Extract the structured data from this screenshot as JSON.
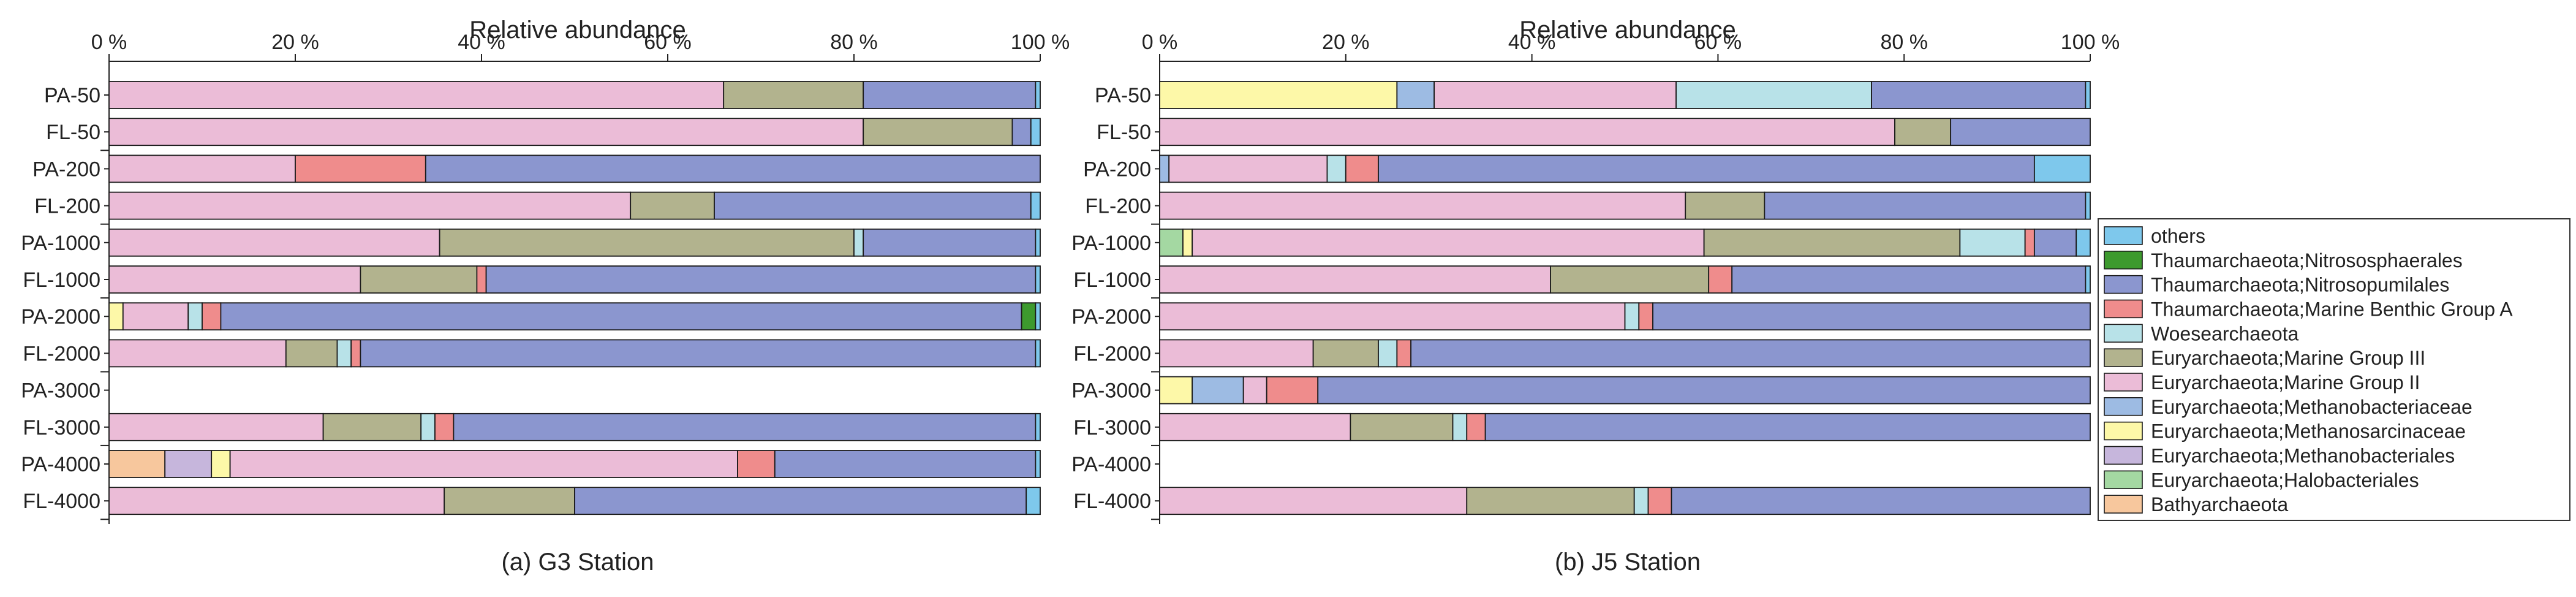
{
  "colors": {
    "others": "#7ec8ec",
    "Thaumarchaeota;Nitrososphaerales": "#3d9a2e",
    "Thaumarchaeota;Nitrosopumilales": "#8b96cf",
    "Thaumarchaeota;Marine Benthic Group A": "#ef8c8c",
    "Woesearchaeota": "#b8e2e8",
    "Euryarchaeota;Marine Group III": "#b2b38e",
    "Euryarchaeota;Marine Group II": "#ebbcd7",
    "Euryarchaeota;Methanobacteriaceae": "#9dbbe3",
    "Euryarchaeota;Methanosarcinaceae": "#fdf8a8",
    "Euryarchaeota;Methanobacteriales": "#c6b6dc",
    "Euryarchaeota;Halobacteriales": "#a4d8a2",
    "Bathyarchaeota": "#f7c79d"
  },
  "legend": {
    "items": [
      "others",
      "Thaumarchaeota;Nitrososphaerales",
      "Thaumarchaeota;Nitrosopumilales",
      "Thaumarchaeota;Marine Benthic Group A",
      "Woesearchaeota",
      "Euryarchaeota;Marine Group III",
      "Euryarchaeota;Marine Group II",
      "Euryarchaeota;Methanobacteriaceae",
      "Euryarchaeota;Methanosarcinaceae",
      "Euryarchaeota;Methanobacteriales",
      "Euryarchaeota;Halobacteriales",
      "Bathyarchaeota"
    ]
  },
  "chart_data": [
    {
      "type": "bar",
      "orientation": "horizontal",
      "stacked": true,
      "title": "(a) G3 Station",
      "xlabel": "Relative abundance",
      "xticks": [
        "0 %",
        "20 %",
        "40 %",
        "60 %",
        "80 %",
        "100 %"
      ],
      "xlim": [
        0,
        100
      ],
      "categories": [
        "PA-50",
        "FL-50",
        "PA-200",
        "FL-200",
        "PA-1000",
        "FL-1000",
        "PA-2000",
        "FL-2000",
        "PA-3000",
        "FL-3000",
        "PA-4000",
        "FL-4000"
      ],
      "series": [
        {
          "name": "Bathyarchaeota",
          "values": [
            0,
            0,
            0,
            0,
            0,
            0,
            0,
            0,
            0,
            0,
            6.0,
            0
          ]
        },
        {
          "name": "Euryarchaeota;Halobacteriales",
          "values": [
            0,
            0,
            0,
            0,
            0,
            0,
            0,
            0,
            0,
            0,
            0,
            0
          ]
        },
        {
          "name": "Euryarchaeota;Methanobacteriales",
          "values": [
            0,
            0,
            0,
            0,
            0,
            0,
            0,
            0,
            0,
            0,
            5.0,
            0
          ]
        },
        {
          "name": "Euryarchaeota;Methanosarcinaceae",
          "values": [
            0,
            0,
            0,
            0,
            0,
            0,
            1.5,
            0,
            0,
            0,
            2.0,
            0
          ]
        },
        {
          "name": "Euryarchaeota;Methanobacteriaceae",
          "values": [
            0,
            0,
            0,
            0,
            0,
            0,
            0,
            0,
            0,
            0,
            0,
            0
          ]
        },
        {
          "name": "Euryarchaeota;Marine Group II",
          "values": [
            66.0,
            81.0,
            20.0,
            56.0,
            35.5,
            27.0,
            7.0,
            19.0,
            0,
            23.0,
            54.5,
            36.0
          ]
        },
        {
          "name": "Euryarchaeota;Marine Group III",
          "values": [
            15.0,
            16.0,
            0,
            9.0,
            44.5,
            12.5,
            0,
            5.5,
            0,
            10.5,
            0,
            14.0
          ]
        },
        {
          "name": "Woesearchaeota",
          "values": [
            0,
            0,
            0,
            0,
            1.0,
            0,
            1.5,
            1.5,
            0,
            1.5,
            0,
            0
          ]
        },
        {
          "name": "Thaumarchaeota;Marine Benthic Group A",
          "values": [
            0,
            0,
            14.0,
            0,
            0,
            1.0,
            2.0,
            1.0,
            0,
            2.0,
            4.0,
            0
          ]
        },
        {
          "name": "Thaumarchaeota;Nitrosopumilales",
          "values": [
            18.5,
            2.0,
            66.0,
            34.0,
            18.5,
            59.0,
            86.0,
            72.5,
            0,
            62.5,
            28.0,
            48.5
          ]
        },
        {
          "name": "Thaumarchaeota;Nitrososphaerales",
          "values": [
            0,
            0,
            0,
            0,
            0,
            0,
            1.5,
            0,
            0,
            0,
            0,
            0
          ]
        },
        {
          "name": "others",
          "values": [
            0.5,
            1.0,
            0,
            1.0,
            0.5,
            0.5,
            0.5,
            0.5,
            0,
            0.5,
            0.5,
            1.5
          ]
        }
      ]
    },
    {
      "type": "bar",
      "orientation": "horizontal",
      "stacked": true,
      "title": "(b) J5 Station",
      "xlabel": "Relative abundance",
      "xticks": [
        "0 %",
        "20 %",
        "40 %",
        "60 %",
        "80 %",
        "100 %"
      ],
      "xlim": [
        0,
        100
      ],
      "categories": [
        "PA-50",
        "FL-50",
        "PA-200",
        "FL-200",
        "PA-1000",
        "FL-1000",
        "PA-2000",
        "FL-2000",
        "PA-3000",
        "FL-3000",
        "PA-4000",
        "FL-4000"
      ],
      "series": [
        {
          "name": "Bathyarchaeota",
          "values": [
            0,
            0,
            0,
            0,
            0,
            0,
            0,
            0,
            0,
            0,
            0,
            0
          ]
        },
        {
          "name": "Euryarchaeota;Halobacteriales",
          "values": [
            0,
            0,
            0,
            0,
            2.5,
            0,
            0,
            0,
            0,
            0,
            0,
            0
          ]
        },
        {
          "name": "Euryarchaeota;Methanobacteriales",
          "values": [
            0,
            0,
            0,
            0,
            0,
            0,
            0,
            0,
            0,
            0,
            0,
            0
          ]
        },
        {
          "name": "Euryarchaeota;Methanosarcinaceae",
          "values": [
            25.5,
            0,
            0,
            0,
            1.0,
            0,
            0,
            0,
            3.5,
            0,
            0,
            0
          ]
        },
        {
          "name": "Euryarchaeota;Methanobacteriaceae",
          "values": [
            4.0,
            0,
            1.0,
            0,
            0,
            0,
            0,
            0,
            5.5,
            0,
            0,
            0
          ]
        },
        {
          "name": "Euryarchaeota;Marine Group II",
          "values": [
            26.0,
            79.0,
            17.0,
            56.5,
            55.0,
            42.0,
            50.0,
            16.5,
            2.5,
            20.5,
            0,
            33.0
          ]
        },
        {
          "name": "Euryarchaeota;Marine Group III",
          "values": [
            0,
            6.0,
            0,
            8.5,
            27.5,
            17.0,
            0,
            7.0,
            0,
            11.0,
            0,
            18.0
          ]
        },
        {
          "name": "Woesearchaeota",
          "values": [
            21.0,
            0,
            2.0,
            0,
            7.0,
            0,
            1.5,
            2.0,
            0,
            1.5,
            0,
            1.5
          ]
        },
        {
          "name": "Thaumarchaeota;Marine Benthic Group A",
          "values": [
            0,
            0,
            3.5,
            0,
            1.0,
            2.5,
            1.5,
            1.5,
            5.5,
            2.0,
            0,
            2.5
          ]
        },
        {
          "name": "Thaumarchaeota;Nitrosopumilales",
          "values": [
            23.0,
            15.0,
            70.5,
            34.5,
            4.5,
            38.0,
            47.0,
            73.0,
            83.0,
            65.0,
            0,
            45.0
          ]
        },
        {
          "name": "Thaumarchaeota;Nitrososphaerales",
          "values": [
            0,
            0,
            0,
            0,
            0,
            0,
            0,
            0,
            0,
            0,
            0,
            0
          ]
        },
        {
          "name": "others",
          "values": [
            0.5,
            0,
            6.0,
            0.5,
            1.5,
            0.5,
            0,
            0,
            0,
            0,
            0,
            0
          ]
        }
      ]
    }
  ]
}
